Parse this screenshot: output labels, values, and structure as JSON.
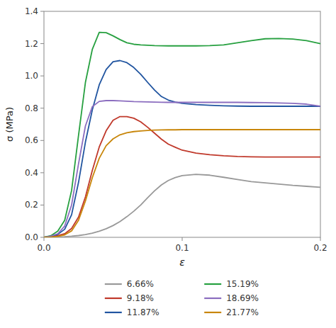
{
  "chart_data": {
    "type": "line",
    "xlabel": "ε",
    "ylabel": "σ (MPa)",
    "xlim": [
      0.0,
      0.2
    ],
    "ylim": [
      0.0,
      1.4
    ],
    "xticks": [
      {
        "value": 0.0,
        "label": "0.0"
      },
      0.1,
      0.2
    ],
    "yticks": [
      {
        "value": 0.0,
        "label": "0.0"
      },
      0.2,
      0.4,
      0.6,
      0.8,
      {
        "value": 1.0,
        "label": "1.0"
      },
      1.2,
      1.4
    ],
    "grid": false,
    "legend": "bottom",
    "series": [
      {
        "name": "6.66%",
        "color": "#999999",
        "x": [
          0.0,
          0.005,
          0.01,
          0.015,
          0.02,
          0.025,
          0.03,
          0.035,
          0.04,
          0.045,
          0.05,
          0.055,
          0.06,
          0.065,
          0.07,
          0.075,
          0.08,
          0.085,
          0.09,
          0.095,
          0.1,
          0.11,
          0.12,
          0.13,
          0.14,
          0.15,
          0.16,
          0.17,
          0.18,
          0.19,
          0.2
        ],
        "values": [
          0.0,
          0.001,
          0.002,
          0.004,
          0.007,
          0.011,
          0.017,
          0.026,
          0.038,
          0.053,
          0.073,
          0.098,
          0.128,
          0.162,
          0.2,
          0.245,
          0.288,
          0.325,
          0.352,
          0.37,
          0.382,
          0.39,
          0.385,
          0.372,
          0.358,
          0.345,
          0.337,
          0.33,
          0.322,
          0.316,
          0.31
        ]
      },
      {
        "name": "9.18%",
        "color": "#c0392b",
        "x": [
          0.0,
          0.005,
          0.01,
          0.015,
          0.02,
          0.025,
          0.03,
          0.035,
          0.04,
          0.045,
          0.05,
          0.055,
          0.06,
          0.065,
          0.07,
          0.075,
          0.08,
          0.085,
          0.09,
          0.095,
          0.1,
          0.11,
          0.12,
          0.13,
          0.14,
          0.15,
          0.16,
          0.17,
          0.18,
          0.19,
          0.2
        ],
        "values": [
          0.0,
          0.004,
          0.01,
          0.022,
          0.055,
          0.125,
          0.25,
          0.415,
          0.56,
          0.66,
          0.725,
          0.748,
          0.748,
          0.738,
          0.715,
          0.682,
          0.645,
          0.608,
          0.577,
          0.558,
          0.54,
          0.522,
          0.512,
          0.505,
          0.501,
          0.499,
          0.498,
          0.498,
          0.498,
          0.498,
          0.498
        ]
      },
      {
        "name": "11.87%",
        "color": "#2155a0",
        "x": [
          0.0,
          0.005,
          0.01,
          0.015,
          0.02,
          0.025,
          0.03,
          0.035,
          0.04,
          0.045,
          0.05,
          0.055,
          0.06,
          0.065,
          0.07,
          0.075,
          0.08,
          0.085,
          0.09,
          0.095,
          0.1,
          0.11,
          0.12,
          0.13,
          0.14,
          0.15,
          0.16,
          0.17,
          0.18,
          0.19,
          0.2
        ],
        "values": [
          0.0,
          0.006,
          0.018,
          0.05,
          0.14,
          0.34,
          0.59,
          0.79,
          0.945,
          1.04,
          1.088,
          1.095,
          1.082,
          1.052,
          1.01,
          0.96,
          0.912,
          0.872,
          0.85,
          0.838,
          0.83,
          0.822,
          0.818,
          0.815,
          0.813,
          0.812,
          0.812,
          0.812,
          0.812,
          0.812,
          0.812
        ]
      },
      {
        "name": "15.19%",
        "color": "#27a040",
        "x": [
          0.0,
          0.005,
          0.01,
          0.015,
          0.02,
          0.025,
          0.03,
          0.035,
          0.04,
          0.045,
          0.05,
          0.055,
          0.06,
          0.065,
          0.07,
          0.075,
          0.08,
          0.09,
          0.1,
          0.11,
          0.12,
          0.13,
          0.14,
          0.15,
          0.16,
          0.17,
          0.18,
          0.19,
          0.2
        ],
        "values": [
          0.0,
          0.01,
          0.038,
          0.105,
          0.29,
          0.63,
          0.96,
          1.165,
          1.27,
          1.268,
          1.248,
          1.225,
          1.205,
          1.196,
          1.192,
          1.19,
          1.188,
          1.186,
          1.186,
          1.186,
          1.188,
          1.192,
          1.205,
          1.218,
          1.23,
          1.232,
          1.228,
          1.218,
          1.2
        ]
      },
      {
        "name": "18.69%",
        "color": "#8b6dbf",
        "x": [
          0.0,
          0.005,
          0.01,
          0.015,
          0.02,
          0.025,
          0.03,
          0.035,
          0.04,
          0.045,
          0.05,
          0.055,
          0.06,
          0.065,
          0.07,
          0.075,
          0.08,
          0.085,
          0.09,
          0.095,
          0.1,
          0.11,
          0.12,
          0.13,
          0.14,
          0.15,
          0.16,
          0.17,
          0.18,
          0.19,
          0.2
        ],
        "values": [
          0.0,
          0.007,
          0.022,
          0.07,
          0.2,
          0.455,
          0.69,
          0.81,
          0.842,
          0.847,
          0.847,
          0.845,
          0.843,
          0.841,
          0.84,
          0.839,
          0.838,
          0.837,
          0.836,
          0.836,
          0.836,
          0.836,
          0.836,
          0.836,
          0.836,
          0.835,
          0.834,
          0.832,
          0.83,
          0.825,
          0.812
        ]
      },
      {
        "name": "21.77%",
        "color": "#c8860a",
        "x": [
          0.0,
          0.005,
          0.01,
          0.015,
          0.02,
          0.025,
          0.03,
          0.035,
          0.04,
          0.045,
          0.05,
          0.055,
          0.06,
          0.065,
          0.07,
          0.075,
          0.08,
          0.085,
          0.09,
          0.095,
          0.1,
          0.11,
          0.12,
          0.13,
          0.14,
          0.15,
          0.16,
          0.17,
          0.18,
          0.19,
          0.2
        ],
        "values": [
          0.0,
          0.002,
          0.006,
          0.015,
          0.04,
          0.105,
          0.225,
          0.37,
          0.49,
          0.568,
          0.61,
          0.635,
          0.648,
          0.655,
          0.659,
          0.662,
          0.664,
          0.665,
          0.666,
          0.666,
          0.667,
          0.667,
          0.667,
          0.667,
          0.667,
          0.667,
          0.667,
          0.667,
          0.667,
          0.667,
          0.667
        ]
      }
    ]
  }
}
